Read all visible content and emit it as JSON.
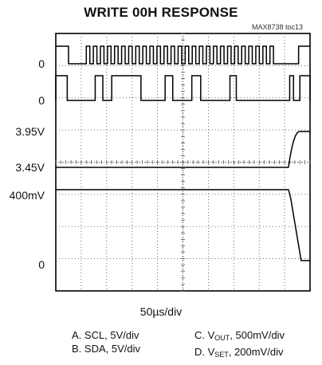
{
  "chart_data": {
    "type": "line",
    "title": "WRITE 00H RESPONSE",
    "figure_id": "MAX8738 toc13",
    "x_scale_label": "50µs/div",
    "x_divisions": 10,
    "y_divisions": 8,
    "grid": true,
    "channel_levels": [
      {
        "channel": "A",
        "label": "0"
      },
      {
        "channel": "B",
        "label": "0"
      },
      {
        "channel": "C",
        "label": "3.95V"
      },
      {
        "channel": "C",
        "label": "3.45V"
      },
      {
        "channel": "D",
        "label": "400mV"
      },
      {
        "channel": "D",
        "label": "0"
      }
    ],
    "legend": {
      "A": {
        "prefix": "A. SCL, 5V/div"
      },
      "B": {
        "prefix": "B. SDA, 5V/div"
      },
      "C": {
        "prefix": "C. V",
        "sub": "OUT",
        "suffix": ", 500mV/div"
      },
      "D": {
        "prefix": "D. V",
        "sub": "SET",
        "suffix": ", 200mV/div"
      }
    },
    "series": [
      {
        "name": "SCL",
        "unit_per_div": "5V/div",
        "idle_high_until_div": 0.5,
        "burst_start_div": 1.2,
        "burst_end_div": 8.7,
        "clock_pulses": 27,
        "ends_high_div": 9.55
      },
      {
        "name": "SDA",
        "unit_per_div": "5V/div",
        "high_segments_div": [
          [
            0,
            0.45
          ],
          [
            1.55,
            1.85
          ],
          [
            2.2,
            3.35
          ],
          [
            4.3,
            4.6
          ],
          [
            5.35,
            5.7
          ],
          [
            6.85,
            7.1
          ],
          [
            9.2,
            9.35
          ],
          [
            9.6,
            10
          ]
        ]
      },
      {
        "name": "VOUT",
        "unit_per_div": "500mV/div",
        "start_level_V": 3.45,
        "end_level_V": 3.95,
        "transition_start_div": 9.15,
        "transition_end_div": 9.6
      },
      {
        "name": "VSET",
        "unit_per_div": "200mV/div",
        "start_level_mV": 400,
        "end_level_mV": 0,
        "transition_start_div": 9.15,
        "transition_end_div": 9.65
      }
    ]
  }
}
